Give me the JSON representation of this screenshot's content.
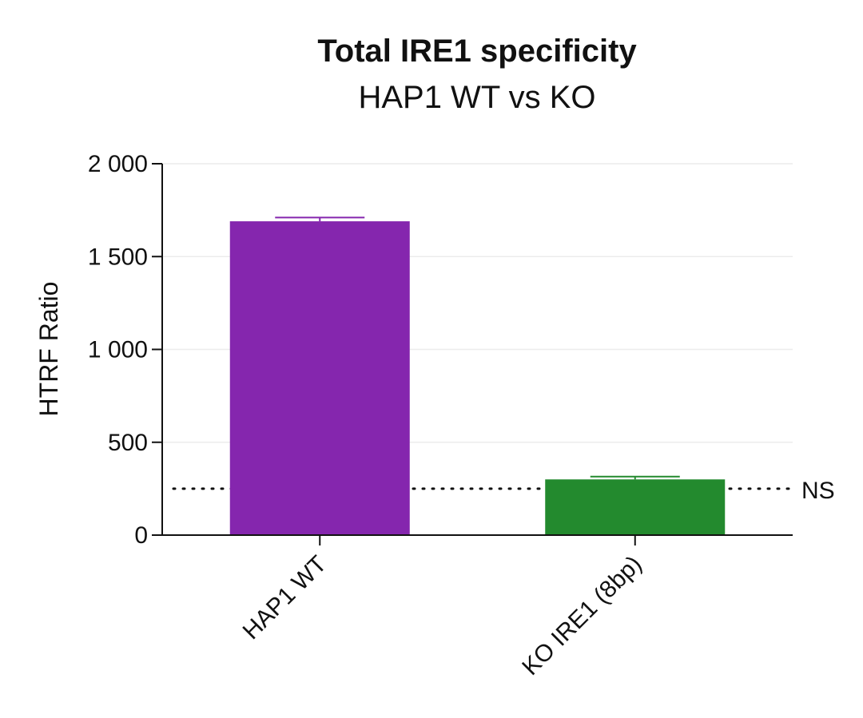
{
  "chart_data": {
    "type": "bar",
    "title": "Total IRE1 specificity",
    "subtitle": "HAP1 WT vs KO",
    "ylabel": "HTRF Ratio",
    "xlabel": "",
    "ylim": [
      0,
      2000
    ],
    "yticks": [
      0,
      500,
      1000,
      1500,
      2000
    ],
    "ytick_labels": [
      "0",
      "500",
      "1 000",
      "1 500",
      "2 000"
    ],
    "categories": [
      "HAP1 WT",
      "KO IRE1 (8bp)"
    ],
    "values": [
      1690,
      300
    ],
    "errors": [
      20,
      15
    ],
    "colors": [
      "#8526ae",
      "#238a2e"
    ],
    "grid": true,
    "legend": "none",
    "reference_line": {
      "label": "NS",
      "value": 250,
      "style": "dotted"
    }
  }
}
